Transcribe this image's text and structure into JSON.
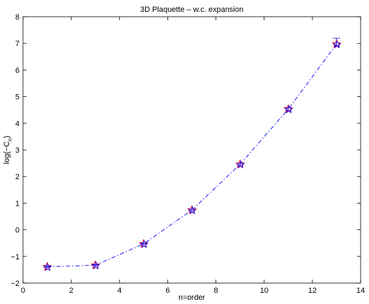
{
  "chart_data": {
    "type": "line",
    "title": "3D Plaquette – w.c. expansion",
    "xlabel": "n=order",
    "ylabel_main": "log(−C",
    "ylabel_sub": "n",
    "ylabel_close": ")",
    "xlim": [
      0,
      14
    ],
    "ylim": [
      -2,
      8
    ],
    "xticks": [
      0,
      2,
      4,
      6,
      8,
      10,
      12,
      14
    ],
    "yticks": [
      -2,
      -1,
      0,
      1,
      2,
      3,
      4,
      5,
      6,
      7,
      8
    ],
    "grid": false,
    "series": [
      {
        "x": [
          1,
          3,
          5,
          7,
          9,
          11,
          13
        ],
        "y": [
          -1.39,
          -1.33,
          -0.53,
          0.74,
          2.46,
          4.53,
          6.97
        ],
        "error_upper": [
          0.02,
          0.02,
          0.02,
          0.03,
          0.04,
          0.06,
          0.22
        ],
        "error_lower": [
          0.02,
          0.02,
          0.02,
          0.03,
          0.04,
          0.06,
          0.05
        ],
        "line_style": "dash-dot",
        "line_color": "#0000ff",
        "marker": "star",
        "marker_colors": [
          "#ff0000",
          "#0000ff"
        ]
      }
    ]
  }
}
